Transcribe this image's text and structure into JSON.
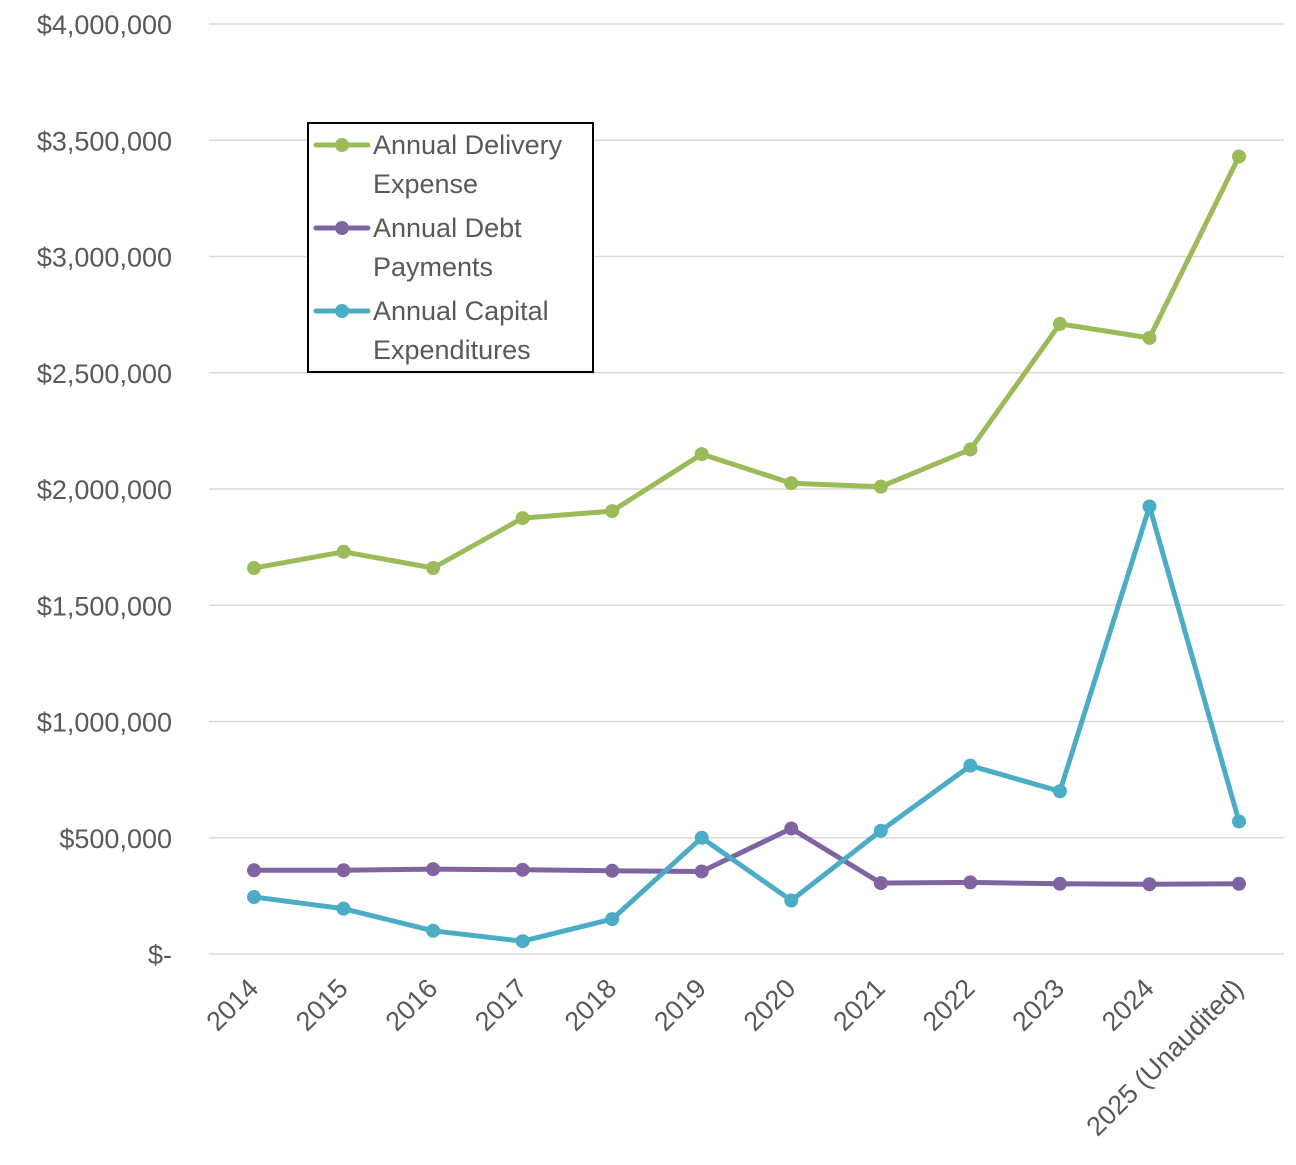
{
  "chart_data": {
    "type": "line",
    "title": "",
    "xlabel": "",
    "ylabel": "",
    "categories": [
      "2014",
      "2015",
      "2016",
      "2017",
      "2018",
      "2019",
      "2020",
      "2021",
      "2022",
      "2023",
      "2024",
      "2025 (Unaudited)"
    ],
    "y_tick_labels": [
      "$-",
      "$500,000",
      "$1,000,000",
      "$1,500,000",
      "$2,000,000",
      "$2,500,000",
      "$3,000,000",
      "$3,500,000",
      "$4,000,000"
    ],
    "y_ticks": [
      0,
      500000,
      1000000,
      1500000,
      2000000,
      2500000,
      3000000,
      3500000,
      4000000
    ],
    "ylim": [
      0,
      4000000
    ],
    "grid": true,
    "legend_position": "upper-left",
    "series": [
      {
        "name_lines": [
          "Annual Delivery",
          "Expense"
        ],
        "color": "#9bbb59",
        "values": [
          1660000,
          1730000,
          1660000,
          1875000,
          1905000,
          2150000,
          2025000,
          2010000,
          2170000,
          2710000,
          2650000,
          3430000
        ]
      },
      {
        "name_lines": [
          "Annual Debt",
          "Payments"
        ],
        "color": "#8064a2",
        "values": [
          360000,
          360000,
          365000,
          362000,
          358000,
          355000,
          540000,
          305000,
          308000,
          302000,
          300000,
          302000
        ]
      },
      {
        "name_lines": [
          "Annual Capital",
          "Expenditures"
        ],
        "color": "#4bacc6",
        "values": [
          245000,
          195000,
          100000,
          55000,
          150000,
          500000,
          230000,
          530000,
          810000,
          700000,
          1925000,
          570000
        ]
      }
    ]
  }
}
